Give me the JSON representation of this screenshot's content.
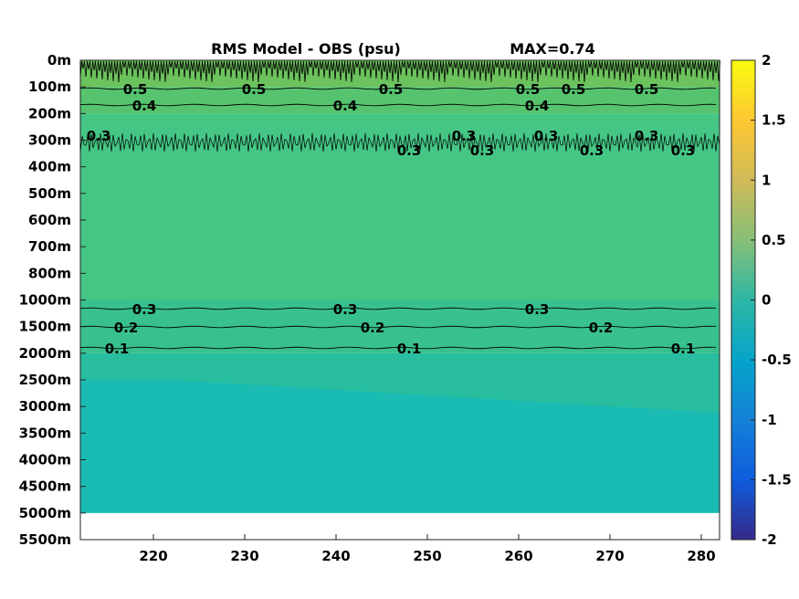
{
  "chart_data": {
    "type": "heatmap",
    "title_left": "RMS Model - OBS (psu)",
    "title_right": "MAX=0.74",
    "x_ticks": [
      220,
      230,
      240,
      250,
      260,
      270,
      280
    ],
    "xlim": [
      212,
      282
    ],
    "y_ticks": [
      "0m",
      "100m",
      "200m",
      "300m",
      "400m",
      "500m",
      "600m",
      "700m",
      "800m",
      "1000m",
      "1500m",
      "2000m",
      "2500m",
      "3000m",
      "3500m",
      "4000m",
      "4500m",
      "5000m",
      "5500m"
    ],
    "colorbar": {
      "ticks": [
        "2",
        "1.5",
        "1",
        "0.5",
        "0",
        "-0.5",
        "-1",
        "-1.5",
        "-2"
      ],
      "range": [
        -2,
        2
      ],
      "colormap": "parula"
    },
    "layers": [
      {
        "depth_from": "0m",
        "depth_to": "100m",
        "value": 0.55,
        "color": "#6cc25c"
      },
      {
        "depth_from": "100m",
        "depth_to": "200m",
        "value": 0.45,
        "color": "#56c46f"
      },
      {
        "depth_from": "200m",
        "depth_to": "1000m",
        "value": 0.35,
        "color": "#45c685"
      },
      {
        "depth_from": "1000m",
        "depth_to": "2000m",
        "value": 0.25,
        "color": "#38c18f"
      },
      {
        "depth_from": "2000m",
        "depth_to": "2500m",
        "value": 0.15,
        "color": "#28bd9f"
      },
      {
        "depth_from": "2500m",
        "depth_to": "5000m",
        "value": 0.1,
        "color": "#1abbb2"
      }
    ],
    "no_data_color": "#ffffff",
    "contours": [
      {
        "level": "0.5",
        "labels_x": [
          218,
          231,
          246,
          261,
          266,
          274
        ]
      },
      {
        "level": "0.4",
        "labels_x": [
          219,
          241,
          262
        ]
      },
      {
        "level": "0.3",
        "labels_x": [
          214,
          248,
          254,
          256,
          263,
          268,
          274,
          278
        ],
        "label": "upper"
      },
      {
        "level": "0.3",
        "labels_x": [
          219,
          241,
          262
        ],
        "label": "deep"
      },
      {
        "level": "0.2",
        "labels_x": [
          217,
          244,
          269
        ]
      },
      {
        "level": "0.1",
        "labels_x": [
          216,
          248,
          278
        ]
      }
    ]
  }
}
